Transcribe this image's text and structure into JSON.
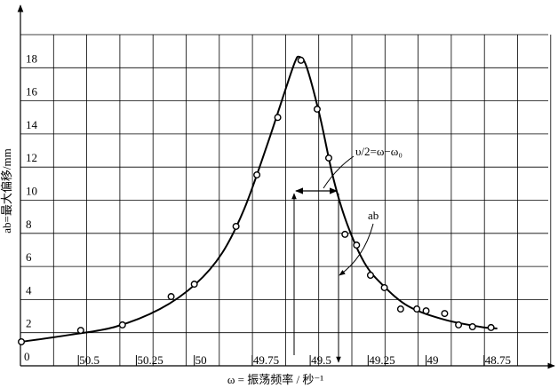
{
  "chart_data": {
    "type": "scatter",
    "xlabel": "ω = 振荡频率 / 秒⁻¹",
    "ylabel": "ab=最大偏移/mm",
    "annotations": [
      "υ/2=ω−ω₀",
      "ab"
    ],
    "xlim": [
      50.75,
      48.5
    ],
    "ylim": [
      0,
      20
    ],
    "xticks": [
      50.5,
      50.25,
      50,
      49.75,
      49.5,
      49.25,
      49,
      48.75
    ],
    "yticks": [
      0,
      2,
      4,
      6,
      8,
      10,
      12,
      14,
      16,
      18
    ],
    "grid": true,
    "series": [
      {
        "type": "line",
        "color": "#000",
        "x": [
          50.746,
          50.532,
          50.34,
          50.148,
          49.995,
          49.88,
          49.784,
          49.688,
          49.612,
          49.566,
          49.547,
          49.516,
          49.459,
          49.401,
          49.344,
          49.268,
          49.191,
          49.076,
          48.922,
          48.769,
          48.693
        ],
        "values": [
          1.45,
          1.88,
          2.36,
          3.43,
          4.93,
          6.81,
          9.49,
          13.24,
          16.46,
          18.34,
          18.66,
          18.07,
          15.12,
          11.37,
          8.69,
          6.27,
          4.93,
          3.59,
          2.79,
          2.36,
          2.25
        ]
      },
      {
        "type": "scatter",
        "color": "#000",
        "x": [
          50.746,
          50.49,
          50.31,
          50.1,
          50.0,
          49.82,
          49.73,
          49.64,
          49.54,
          49.47,
          49.42,
          49.35,
          49.3,
          49.24,
          49.18,
          49.11,
          49.04,
          49.0,
          48.92,
          48.86,
          48.8,
          48.72
        ],
        "values": [
          1.45,
          2.14,
          2.47,
          4.18,
          4.93,
          8.42,
          11.53,
          15.0,
          18.45,
          15.5,
          12.55,
          7.94,
          7.29,
          5.47,
          4.72,
          3.43,
          3.43,
          3.32,
          3.16,
          2.47,
          2.36,
          2.31
        ]
      }
    ]
  }
}
